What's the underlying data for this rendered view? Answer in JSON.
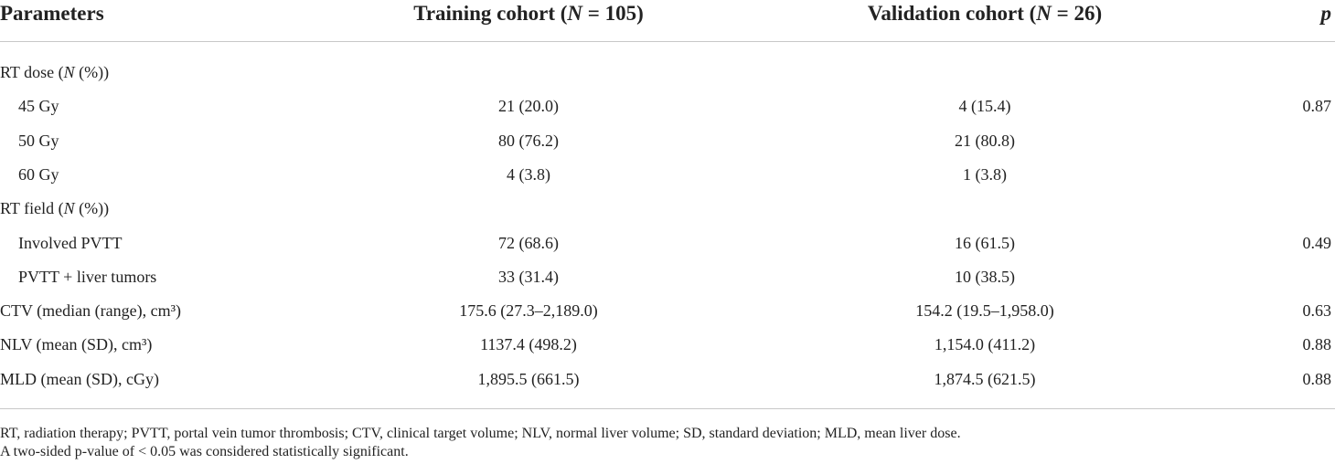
{
  "table": {
    "header": [
      [
        {
          "text": "Parameters"
        }
      ],
      [
        {
          "text": "Training cohort ("
        },
        {
          "text": "N",
          "italic": true
        },
        {
          "text": " = 105)"
        }
      ],
      [
        {
          "text": "Validation cohort ("
        },
        {
          "text": "N",
          "italic": true
        },
        {
          "text": " = 26)"
        }
      ],
      [
        {
          "text": "p",
          "italic": true
        }
      ]
    ],
    "rows": [
      {
        "label": [
          {
            "text": "RT dose ("
          },
          {
            "text": "N",
            "italic": true
          },
          {
            "text": " (%))"
          }
        ],
        "items": [
          {
            "label": "45 Gy",
            "training": "21 (20.0)",
            "validation": "4 (15.4)",
            "p": "0.87"
          },
          {
            "label": "50 Gy",
            "training": "80 (76.2)",
            "validation": "21 (80.8)"
          },
          {
            "label": "60 Gy",
            "training": "4 (3.8)",
            "validation": "1 (3.8)"
          }
        ]
      },
      {
        "label": [
          {
            "text": "RT field ("
          },
          {
            "text": "N",
            "italic": true
          },
          {
            "text": " (%))"
          }
        ],
        "items": [
          {
            "label": "Involved PVTT",
            "training": "72 (68.6)",
            "validation": "16 (61.5)",
            "p": "0.49"
          },
          {
            "label": "PVTT + liver tumors",
            "training": "33 (31.4)",
            "validation": "10 (38.5)"
          }
        ]
      },
      {
        "label": "CTV (median (range), cm³)",
        "training": "175.6 (27.3–2,189.0)",
        "validation": "154.2 (19.5–1,958.0)",
        "p": "0.63"
      },
      {
        "label": "NLV (mean (SD), cm³)",
        "training": "1137.4 (498.2)",
        "validation": "1,154.0 (411.2)",
        "p": "0.88"
      },
      {
        "label": "MLD (mean (SD), cGy)",
        "training": "1,895.5 (661.5)",
        "validation": "1,874.5 (621.5)",
        "p": "0.88"
      }
    ],
    "footnotes": [
      "RT, radiation therapy; PVTT, portal vein tumor thrombosis; CTV, clinical target volume; NLV, normal liver volume; SD, standard deviation; MLD, mean liver dose.",
      "A two-sided p-value of < 0.05 was considered statistically significant."
    ]
  }
}
